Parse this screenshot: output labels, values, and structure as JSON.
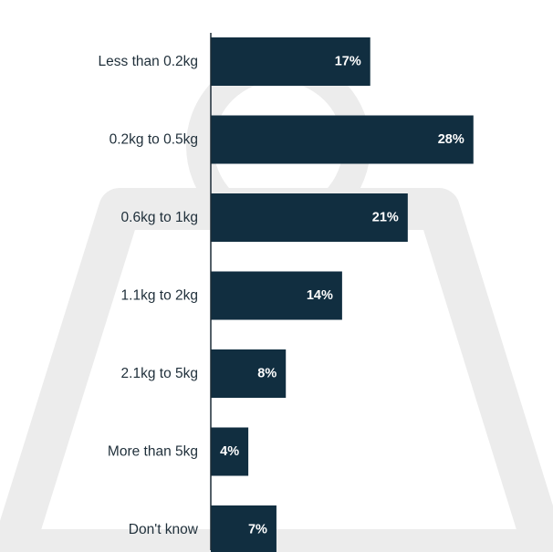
{
  "colors": {
    "bar": "#112e40",
    "axis": "#1c2b36",
    "background_weight": "#ececec",
    "value_label": "#ffffff",
    "category_label": "#1f2f3a"
  },
  "background_icon": "weight-icon",
  "chart_data": {
    "type": "bar",
    "orientation": "horizontal",
    "categories": [
      "Less than 0.2kg",
      "0.2kg to 0.5kg",
      "0.6kg to 1kg",
      "1.1kg to 2kg",
      "2.1kg to 5kg",
      "More than 5kg",
      "Don't know"
    ],
    "values": [
      17,
      28,
      21,
      14,
      8,
      4,
      7
    ],
    "value_labels": [
      "17%",
      "28%",
      "21%",
      "14%",
      "8%",
      "4%",
      "7%"
    ],
    "unit": "%",
    "xlim": [
      0,
      36
    ],
    "grid": false,
    "legend": "none"
  }
}
